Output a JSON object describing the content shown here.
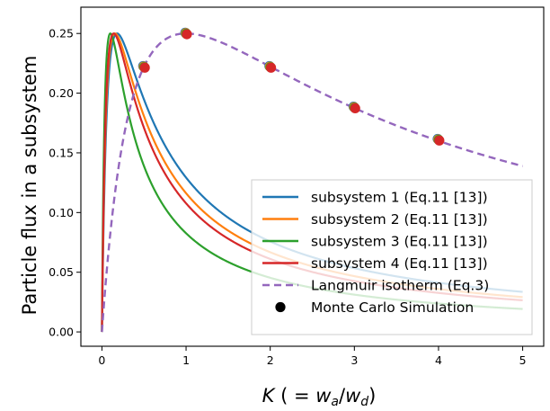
{
  "chart_data": {
    "type": "line",
    "xlabel": "K ( = w_a/w_d)",
    "xlabel_parts": {
      "sym": "K",
      "open": " ( = ",
      "wa": "w",
      "wa_sub": "a",
      "slash": "/",
      "wd": "w",
      "wd_sub": "d",
      "close": ")"
    },
    "ylabel": "Particle flux in a subsystem",
    "xlim": [
      -0.25,
      5.25
    ],
    "ylim": [
      -0.012,
      0.272
    ],
    "xticks": [
      0,
      1,
      2,
      3,
      4,
      5
    ],
    "xtick_labels": [
      "0",
      "1",
      "2",
      "3",
      "4",
      "5"
    ],
    "yticks": [
      0.0,
      0.05,
      0.1,
      0.15,
      0.2,
      0.25
    ],
    "ytick_labels": [
      "0.00",
      "0.05",
      "0.10",
      "0.15",
      "0.20",
      "0.25"
    ],
    "grid": false,
    "legend_position": "lower-right",
    "series": [
      {
        "name": "subsystem 1 (Eq.11 [13])",
        "color": "#1f77b4",
        "peak_k": 0.18,
        "peak_value": 0.25,
        "style": "solid"
      },
      {
        "name": "subsystem 2 (Eq.11 [13])",
        "color": "#ff7f0e",
        "peak_k": 0.155,
        "peak_value": 0.25,
        "style": "solid"
      },
      {
        "name": "subsystem 3 (Eq.11 [13])",
        "color": "#2ca02c",
        "peak_k": 0.1,
        "peak_value": 0.25,
        "style": "solid"
      },
      {
        "name": "subsystem 4 (Eq.11 [13])",
        "color": "#d62728",
        "peak_k": 0.14,
        "peak_value": 0.25,
        "style": "solid"
      },
      {
        "name": "Langmuir isotherm (Eq.3)",
        "color": "#9467bd",
        "formula": "K/(1+K)^2",
        "style": "dashed"
      }
    ],
    "scatter": {
      "name": "Monte Carlo Simulation",
      "legend_color": "#000000",
      "x": [
        0.5,
        1,
        2,
        3,
        4
      ],
      "y": [
        0.222,
        0.25,
        0.222,
        0.188,
        0.161
      ],
      "colors": [
        "#1f77b4",
        "#ff7f0e",
        "#2ca02c",
        "#d62728"
      ]
    }
  }
}
